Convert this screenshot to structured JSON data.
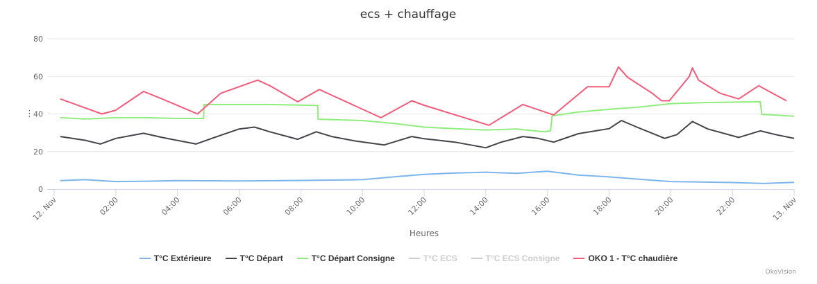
{
  "chart_data": {
    "type": "line",
    "title": "ecs + chauffage",
    "xlabel": "Heures",
    "ylabel": "",
    "ylim": [
      0,
      80
    ],
    "yticks": [
      "0",
      "20",
      "40",
      "60",
      "80"
    ],
    "xticks": [
      "12. Nov",
      "02:00",
      "04:00",
      "06:00",
      "08:00",
      "10:00",
      "12:00",
      "14:00",
      "16:00",
      "18:00",
      "20:00",
      "22:00",
      "13. Nov"
    ],
    "x_unit": "hours since 12. Nov 00:00",
    "grid": true,
    "legend_position": "bottom",
    "series": [
      {
        "name": "T°C Extérieure",
        "color": "#7cb5ec",
        "visible": true,
        "points": [
          [
            0.2,
            4.5
          ],
          [
            1,
            5
          ],
          [
            2,
            4
          ],
          [
            3,
            4.2
          ],
          [
            4,
            4.5
          ],
          [
            6,
            4.3
          ],
          [
            8,
            4.6
          ],
          [
            10,
            5
          ],
          [
            11,
            6.5
          ],
          [
            12,
            7.8
          ],
          [
            13,
            8.6
          ],
          [
            14,
            9
          ],
          [
            15,
            8.4
          ],
          [
            16,
            9.5
          ],
          [
            17,
            7.5
          ],
          [
            18,
            6.5
          ],
          [
            19,
            5.2
          ],
          [
            20,
            4
          ],
          [
            22,
            3.5
          ],
          [
            23,
            3
          ],
          [
            24,
            3.6
          ]
        ]
      },
      {
        "name": "T°C Départ",
        "color": "#434348",
        "visible": true,
        "points": [
          [
            0.2,
            28
          ],
          [
            1,
            26
          ],
          [
            1.5,
            24
          ],
          [
            2,
            27
          ],
          [
            2.9,
            29.7
          ],
          [
            3.5,
            27.5
          ],
          [
            4.6,
            24
          ],
          [
            5.2,
            27.5
          ],
          [
            6,
            32
          ],
          [
            6.5,
            33
          ],
          [
            7,
            30.5
          ],
          [
            7.9,
            26.5
          ],
          [
            8.5,
            30.5
          ],
          [
            9,
            28
          ],
          [
            9.8,
            25.5
          ],
          [
            10.7,
            23.5
          ],
          [
            11.6,
            28
          ],
          [
            12,
            26.8
          ],
          [
            13,
            25
          ],
          [
            14,
            22
          ],
          [
            14.5,
            25
          ],
          [
            15.2,
            28
          ],
          [
            15.7,
            27
          ],
          [
            16.2,
            25
          ],
          [
            17,
            29.5
          ],
          [
            18,
            32.2
          ],
          [
            18.4,
            36.5
          ],
          [
            18.9,
            33
          ],
          [
            19.5,
            29
          ],
          [
            19.8,
            27
          ],
          [
            20.2,
            29
          ],
          [
            20.7,
            36
          ],
          [
            21.2,
            32
          ],
          [
            22.2,
            27.5
          ],
          [
            22.9,
            31
          ],
          [
            23.4,
            29
          ],
          [
            24,
            27
          ]
        ]
      },
      {
        "name": "T°C Départ Consigne",
        "color": "#90ed7d",
        "visible": true,
        "points": [
          [
            0.2,
            38
          ],
          [
            1,
            37.3
          ],
          [
            2,
            38
          ],
          [
            3,
            38
          ],
          [
            4,
            37.6
          ],
          [
            4.85,
            37.6
          ],
          [
            4.86,
            45
          ],
          [
            6,
            45
          ],
          [
            7,
            45
          ],
          [
            8.55,
            44.5
          ],
          [
            8.56,
            37.2
          ],
          [
            10,
            36.5
          ],
          [
            11,
            35
          ],
          [
            12,
            33
          ],
          [
            13,
            32.2
          ],
          [
            14,
            31.5
          ],
          [
            15,
            32
          ],
          [
            15.9,
            30.5
          ],
          [
            16.1,
            31
          ],
          [
            16.15,
            39
          ],
          [
            17,
            41
          ],
          [
            18,
            42.5
          ],
          [
            19,
            43.7
          ],
          [
            20,
            45.5
          ],
          [
            21,
            46
          ],
          [
            22.9,
            46.5
          ],
          [
            22.95,
            39.8
          ],
          [
            24,
            38.8
          ]
        ]
      },
      {
        "name": "T°C ECS",
        "color": "#cccccc",
        "visible": false,
        "points": []
      },
      {
        "name": "T°C ECS Consigne",
        "color": "#cccccc",
        "visible": false,
        "points": []
      },
      {
        "name": "OKO 1 - T°C chaudière",
        "color": "#f45b7a",
        "visible": true,
        "points": [
          [
            0.2,
            48
          ],
          [
            1.55,
            40
          ],
          [
            2,
            42
          ],
          [
            2.9,
            52
          ],
          [
            3.5,
            48
          ],
          [
            4.65,
            40
          ],
          [
            5.4,
            51
          ],
          [
            6.6,
            58
          ],
          [
            7,
            55
          ],
          [
            7.9,
            46.5
          ],
          [
            8.6,
            53
          ],
          [
            9,
            50
          ],
          [
            10.6,
            38
          ],
          [
            11.6,
            47
          ],
          [
            12,
            44.6
          ],
          [
            14.1,
            34
          ],
          [
            15.2,
            45
          ],
          [
            16.2,
            39.5
          ],
          [
            17.3,
            54.5
          ],
          [
            18,
            54.5
          ],
          [
            18.3,
            65
          ],
          [
            18.6,
            59.5
          ],
          [
            19.4,
            51
          ],
          [
            19.7,
            47
          ],
          [
            19.95,
            47
          ],
          [
            20.6,
            60
          ],
          [
            20.7,
            64.5
          ],
          [
            20.9,
            58
          ],
          [
            21.6,
            51
          ],
          [
            22.2,
            48
          ],
          [
            22.85,
            55
          ],
          [
            23.75,
            47
          ]
        ]
      }
    ]
  },
  "credit": "OkoVision",
  "menu_icon": "context-menu-icon"
}
